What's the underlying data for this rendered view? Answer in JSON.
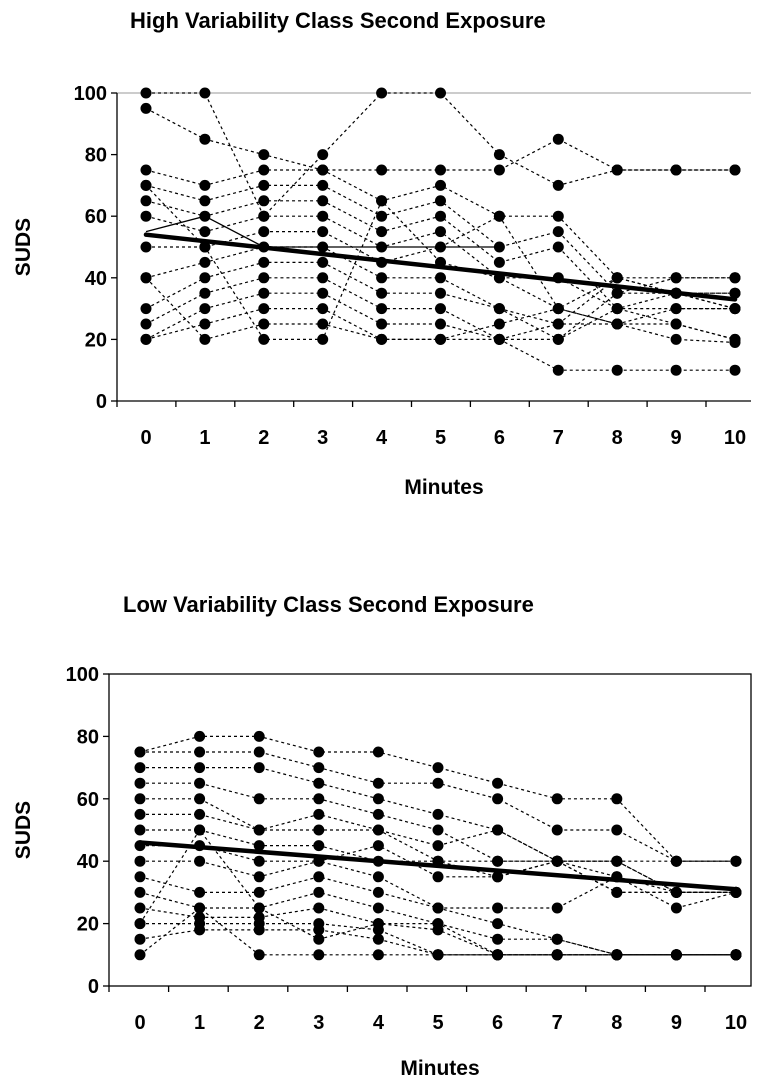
{
  "chart_data": [
    {
      "type": "line",
      "title": "High Variability Class Second Exposure",
      "xlabel": "Minutes",
      "ylabel": "SUDS",
      "xlim": [
        0,
        10
      ],
      "ylim": [
        0,
        100
      ],
      "x_ticks": [
        "0",
        "1",
        "2",
        "3",
        "4",
        "5",
        "6",
        "7",
        "8",
        "9",
        "10"
      ],
      "y_ticks": [
        "0",
        "20",
        "40",
        "60",
        "80",
        "100"
      ],
      "grid": "top line at 100",
      "legend": "none",
      "trend": {
        "name": "",
        "x": [
          0,
          10
        ],
        "values": [
          54,
          33
        ]
      },
      "extra_solid": {
        "x": [
          0,
          1,
          2,
          3,
          4,
          5,
          6
        ],
        "values": [
          55,
          60,
          50,
          50,
          50,
          50,
          50
        ]
      },
      "series": [
        {
          "values": [
            100,
            100,
            60,
            80,
            100,
            100,
            80,
            70,
            75,
            75,
            75
          ]
        },
        {
          "values": [
            95,
            85,
            80,
            75,
            75,
            75,
            75,
            85,
            75,
            75,
            75
          ]
        },
        {
          "values": [
            75,
            70,
            75,
            75,
            65,
            70,
            60,
            60,
            40,
            40,
            40
          ]
        },
        {
          "values": [
            70,
            65,
            70,
            70,
            60,
            65,
            50,
            55,
            35,
            35,
            35
          ]
        },
        {
          "values": [
            65,
            60,
            65,
            65,
            55,
            60,
            45,
            50,
            30,
            30,
            30
          ]
        },
        {
          "values": [
            60,
            55,
            60,
            60,
            50,
            55,
            40,
            40,
            30,
            25,
            20
          ]
        },
        {
          "values": [
            50,
            50,
            55,
            55,
            45,
            50,
            60,
            30,
            25,
            20,
            19
          ]
        },
        {
          "values": [
            40,
            45,
            50,
            50,
            40,
            40,
            30,
            25,
            25,
            30,
            30
          ]
        },
        {
          "values": [
            30,
            40,
            45,
            45,
            35,
            35,
            30,
            20,
            30,
            35,
            35
          ]
        },
        {
          "values": [
            25,
            35,
            40,
            40,
            30,
            30,
            20,
            10,
            10,
            10,
            10
          ]
        },
        {
          "values": [
            20,
            30,
            35,
            35,
            25,
            25,
            20,
            20,
            35,
            40,
            40
          ]
        },
        {
          "values": [
            20,
            25,
            30,
            30,
            20,
            20,
            20,
            25,
            40,
            35,
            30
          ]
        },
        {
          "values": [
            40,
            20,
            25,
            25,
            20,
            20,
            25,
            30,
            40,
            35,
            30
          ]
        },
        {
          "values": [
            70,
            50,
            20,
            20,
            65,
            45,
            40,
            30,
            25,
            25,
            20
          ]
        }
      ]
    },
    {
      "type": "line",
      "title": "Low Variability Class Second Exposure",
      "xlabel": "Minutes",
      "ylabel": "SUDS",
      "xlim": [
        0,
        10
      ],
      "ylim": [
        0,
        100
      ],
      "x_ticks": [
        "0",
        "1",
        "2",
        "3",
        "4",
        "5",
        "6",
        "7",
        "8",
        "9",
        "10"
      ],
      "y_ticks": [
        "0",
        "20",
        "40",
        "60",
        "80",
        "100"
      ],
      "grid": "none",
      "legend": "none",
      "trend": {
        "name": "",
        "x": [
          0,
          10
        ],
        "values": [
          46,
          31
        ]
      },
      "series": [
        {
          "values": [
            75,
            80,
            80,
            75,
            75,
            70,
            65,
            60,
            60,
            40,
            40
          ]
        },
        {
          "values": [
            75,
            75,
            75,
            70,
            65,
            65,
            60,
            50,
            50,
            40,
            40
          ]
        },
        {
          "values": [
            70,
            70,
            70,
            65,
            60,
            55,
            50,
            40,
            40,
            40,
            40
          ]
        },
        {
          "values": [
            65,
            65,
            60,
            60,
            55,
            50,
            40,
            40,
            40,
            30,
            30
          ]
        },
        {
          "values": [
            60,
            60,
            50,
            55,
            50,
            45,
            50,
            40,
            35,
            25,
            30
          ]
        },
        {
          "values": [
            55,
            55,
            50,
            50,
            50,
            40,
            40,
            40,
            40,
            30,
            30
          ]
        },
        {
          "values": [
            50,
            50,
            45,
            45,
            40,
            40,
            35,
            40,
            30,
            30,
            30
          ]
        },
        {
          "values": [
            45,
            45,
            40,
            40,
            45,
            35,
            35,
            40,
            30,
            30,
            30
          ]
        },
        {
          "values": [
            40,
            40,
            35,
            40,
            35,
            25,
            25,
            25,
            35,
            30,
            30
          ]
        },
        {
          "values": [
            35,
            30,
            30,
            35,
            30,
            25,
            20,
            15,
            10,
            10,
            10
          ]
        },
        {
          "values": [
            30,
            25,
            25,
            30,
            25,
            20,
            15,
            15,
            10,
            10,
            10
          ]
        },
        {
          "values": [
            25,
            22,
            22,
            25,
            20,
            18,
            10,
            10,
            10,
            10,
            10
          ]
        },
        {
          "values": [
            20,
            20,
            20,
            20,
            18,
            10,
            10,
            10,
            10,
            10,
            10
          ]
        },
        {
          "values": [
            15,
            18,
            18,
            18,
            15,
            10,
            10,
            10,
            10,
            10,
            10
          ]
        },
        {
          "values": [
            10,
            25,
            10,
            10,
            10,
            10,
            10,
            10,
            10,
            10,
            10
          ]
        },
        {
          "values": [
            20,
            50,
            25,
            15,
            20,
            20,
            10,
            10,
            10,
            10,
            10
          ]
        }
      ]
    }
  ]
}
